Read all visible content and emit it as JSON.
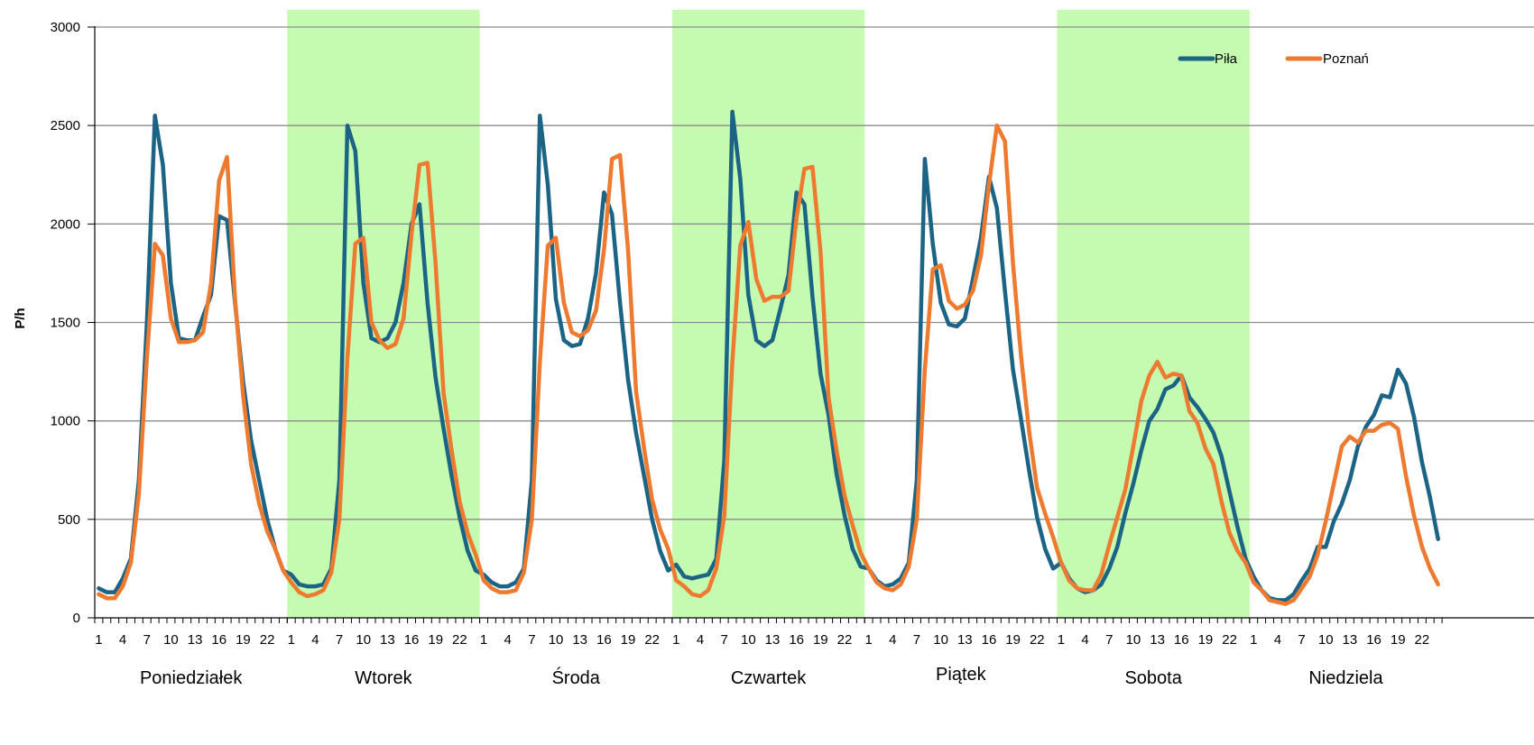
{
  "chart_data": {
    "type": "line",
    "title": "",
    "ylabel": "P/h",
    "xlabel": "",
    "ylim": [
      0,
      3000
    ],
    "y_ticks": [
      0,
      500,
      1000,
      1500,
      2000,
      2500,
      3000
    ],
    "grid": "horizontal",
    "legend_position": "top-right",
    "hours_per_day": 24,
    "hour_tick_labels": [
      "1",
      "4",
      "7",
      "10",
      "13",
      "16",
      "19",
      "22"
    ],
    "hour_tick_values": [
      1,
      4,
      7,
      10,
      13,
      16,
      19,
      22
    ],
    "days": [
      "Poniedziałek",
      "Wtorek",
      "Środa",
      "Czwartek",
      "Piątek",
      "Sobota",
      "Niedziela"
    ],
    "shaded_days": [
      "Wtorek",
      "Czwartek",
      "Sobota"
    ],
    "colors": {
      "shade": "#c5fbb0",
      "grid": "#8c8c8c",
      "axis": "#000000"
    },
    "series": [
      {
        "name": "Piła",
        "color": "#1b6485",
        "values": [
          150,
          130,
          130,
          200,
          300,
          700,
          1500,
          2550,
          2300,
          1700,
          1420,
          1410,
          1410,
          1530,
          1640,
          2040,
          2020,
          1600,
          1200,
          900,
          700,
          500,
          350,
          240,
          220,
          170,
          160,
          160,
          170,
          250,
          700,
          2500,
          2370,
          1700,
          1420,
          1400,
          1420,
          1500,
          1700,
          2000,
          2100,
          1600,
          1220,
          960,
          720,
          510,
          340,
          240,
          220,
          180,
          160,
          160,
          180,
          250,
          700,
          2550,
          2200,
          1620,
          1410,
          1380,
          1390,
          1520,
          1750,
          2160,
          2050,
          1600,
          1210,
          940,
          720,
          500,
          340,
          240,
          270,
          210,
          200,
          210,
          220,
          300,
          800,
          2570,
          2230,
          1640,
          1410,
          1380,
          1410,
          1570,
          1740,
          2160,
          2100,
          1630,
          1240,
          1030,
          730,
          520,
          350,
          260,
          250,
          190,
          160,
          170,
          200,
          280,
          700,
          2330,
          1900,
          1600,
          1490,
          1480,
          1520,
          1720,
          1930,
          2240,
          2080,
          1660,
          1260,
          1010,
          750,
          510,
          350,
          250,
          280,
          200,
          150,
          130,
          140,
          170,
          250,
          360,
          530,
          680,
          850,
          1000,
          1060,
          1160,
          1180,
          1230,
          1120,
          1070,
          1010,
          940,
          820,
          640,
          460,
          300,
          210,
          140,
          100,
          90,
          90,
          120,
          190,
          250,
          360,
          360,
          490,
          580,
          700,
          870,
          970,
          1030,
          1130,
          1120,
          1260,
          1190,
          1020,
          790,
          610,
          400
        ]
      },
      {
        "name": "Poznań",
        "color": "#ee7a30",
        "values": [
          120,
          100,
          100,
          160,
          280,
          630,
          1320,
          1900,
          1840,
          1520,
          1400,
          1400,
          1410,
          1450,
          1700,
          2220,
          2340,
          1620,
          1130,
          780,
          580,
          440,
          350,
          240,
          180,
          130,
          110,
          120,
          140,
          230,
          500,
          1320,
          1900,
          1930,
          1500,
          1410,
          1370,
          1390,
          1520,
          1950,
          2300,
          2310,
          1800,
          1140,
          850,
          590,
          430,
          320,
          190,
          150,
          130,
          130,
          140,
          230,
          500,
          1300,
          1890,
          1930,
          1600,
          1450,
          1430,
          1460,
          1560,
          1870,
          2330,
          2350,
          1870,
          1150,
          860,
          600,
          450,
          350,
          190,
          160,
          120,
          110,
          140,
          250,
          520,
          1300,
          1890,
          2010,
          1720,
          1610,
          1630,
          1630,
          1660,
          2030,
          2280,
          2290,
          1860,
          1120,
          850,
          620,
          470,
          330,
          250,
          180,
          150,
          140,
          170,
          260,
          500,
          1260,
          1770,
          1790,
          1610,
          1570,
          1590,
          1660,
          1840,
          2200,
          2500,
          2420,
          1800,
          1330,
          950,
          660,
          530,
          410,
          280,
          190,
          150,
          140,
          140,
          220,
          370,
          510,
          650,
          870,
          1100,
          1230,
          1300,
          1220,
          1240,
          1230,
          1050,
          990,
          860,
          780,
          590,
          430,
          340,
          280,
          180,
          140,
          90,
          80,
          70,
          90,
          150,
          210,
          320,
          490,
          680,
          870,
          920,
          890,
          950,
          950,
          980,
          990,
          960,
          720,
          520,
          360,
          250,
          170
        ]
      }
    ]
  }
}
